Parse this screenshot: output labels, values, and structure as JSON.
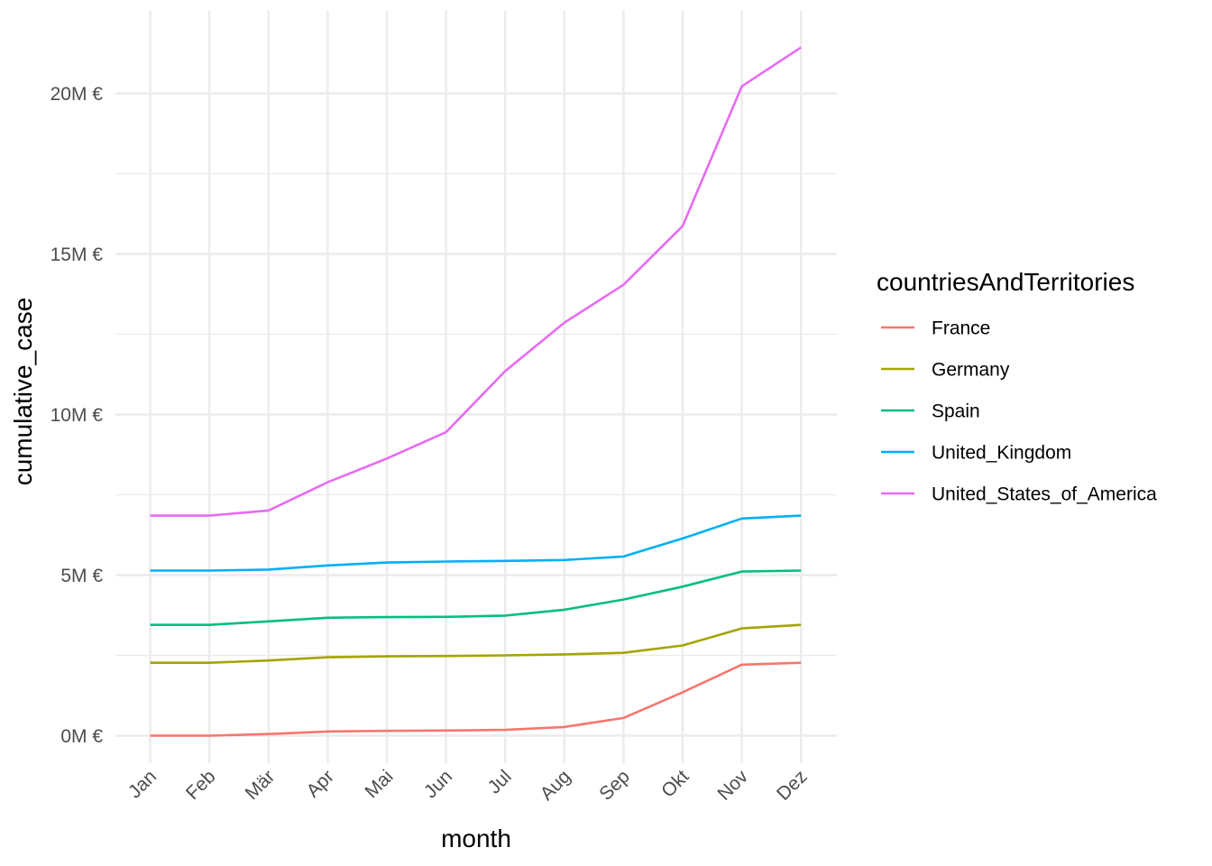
{
  "chart_data": {
    "type": "line",
    "title": "",
    "xlabel": "month",
    "ylabel": "cumulative_case",
    "categories": [
      "Jan",
      "Feb",
      "Mär",
      "Apr",
      "Mai",
      "Jun",
      "Jul",
      "Aug",
      "Sep",
      "Okt",
      "Nov",
      "Dez"
    ],
    "ylim": [
      -800000,
      22200000
    ],
    "yticks": [
      0,
      5000000,
      10000000,
      15000000,
      20000000
    ],
    "ytick_labels": [
      "0M €",
      "5M €",
      "10M €",
      "15M €",
      "20M €"
    ],
    "grid": true,
    "legend_title": "countriesAndTerritories",
    "legend_position": "right",
    "series": [
      {
        "name": "France",
        "color": "#F8766D",
        "values": [
          0,
          0,
          50000,
          130000,
          150000,
          160000,
          180000,
          270000,
          550000,
          1350000,
          2210000,
          2270000
        ]
      },
      {
        "name": "Germany",
        "color": "#A3A500",
        "values": [
          2270000,
          2270000,
          2340000,
          2440000,
          2470000,
          2480000,
          2500000,
          2530000,
          2580000,
          2810000,
          3340000,
          3450000
        ]
      },
      {
        "name": "Spain",
        "color": "#00BF7D",
        "values": [
          3450000,
          3450000,
          3560000,
          3670000,
          3690000,
          3700000,
          3740000,
          3920000,
          4240000,
          4640000,
          5110000,
          5140000
        ]
      },
      {
        "name": "United_Kingdom",
        "color": "#00B0F6",
        "values": [
          5140000,
          5140000,
          5170000,
          5300000,
          5390000,
          5420000,
          5440000,
          5470000,
          5580000,
          6140000,
          6760000,
          6850000
        ]
      },
      {
        "name": "United_States_of_America",
        "color": "#E76BF3",
        "values": [
          6850000,
          6850000,
          7010000,
          7890000,
          8630000,
          9450000,
          11350000,
          12860000,
          14040000,
          15870000,
          20220000,
          21430000
        ]
      }
    ]
  }
}
